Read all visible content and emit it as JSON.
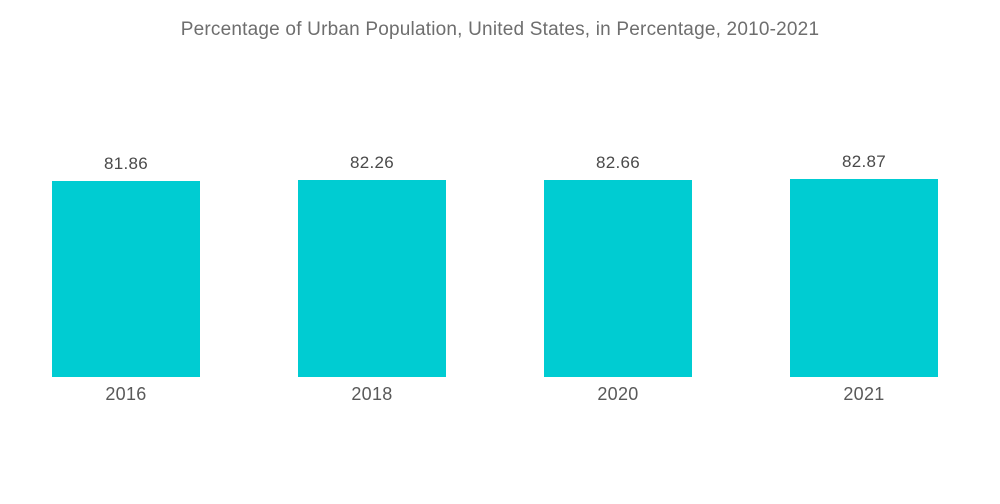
{
  "chart_data": {
    "type": "bar",
    "title": "Percentage of Urban Population, United States, in Percentage, 2010-2021",
    "categories": [
      "2016",
      "2018",
      "2020",
      "2021"
    ],
    "values": [
      81.86,
      82.26,
      82.66,
      82.87
    ],
    "value_labels": [
      "81.86",
      "82.26",
      "82.66",
      "82.87"
    ],
    "xlabel": "",
    "ylabel": "",
    "ylim": [
      0,
      82.87
    ],
    "grid": false,
    "legend": false,
    "axes_visible": false,
    "colors": {
      "bar": "#00CCD2",
      "background": "#FFFFFF",
      "title_text": "#6E6E6E",
      "value_label_text": "#4A4A4A",
      "tick_label_text": "#595959"
    }
  }
}
